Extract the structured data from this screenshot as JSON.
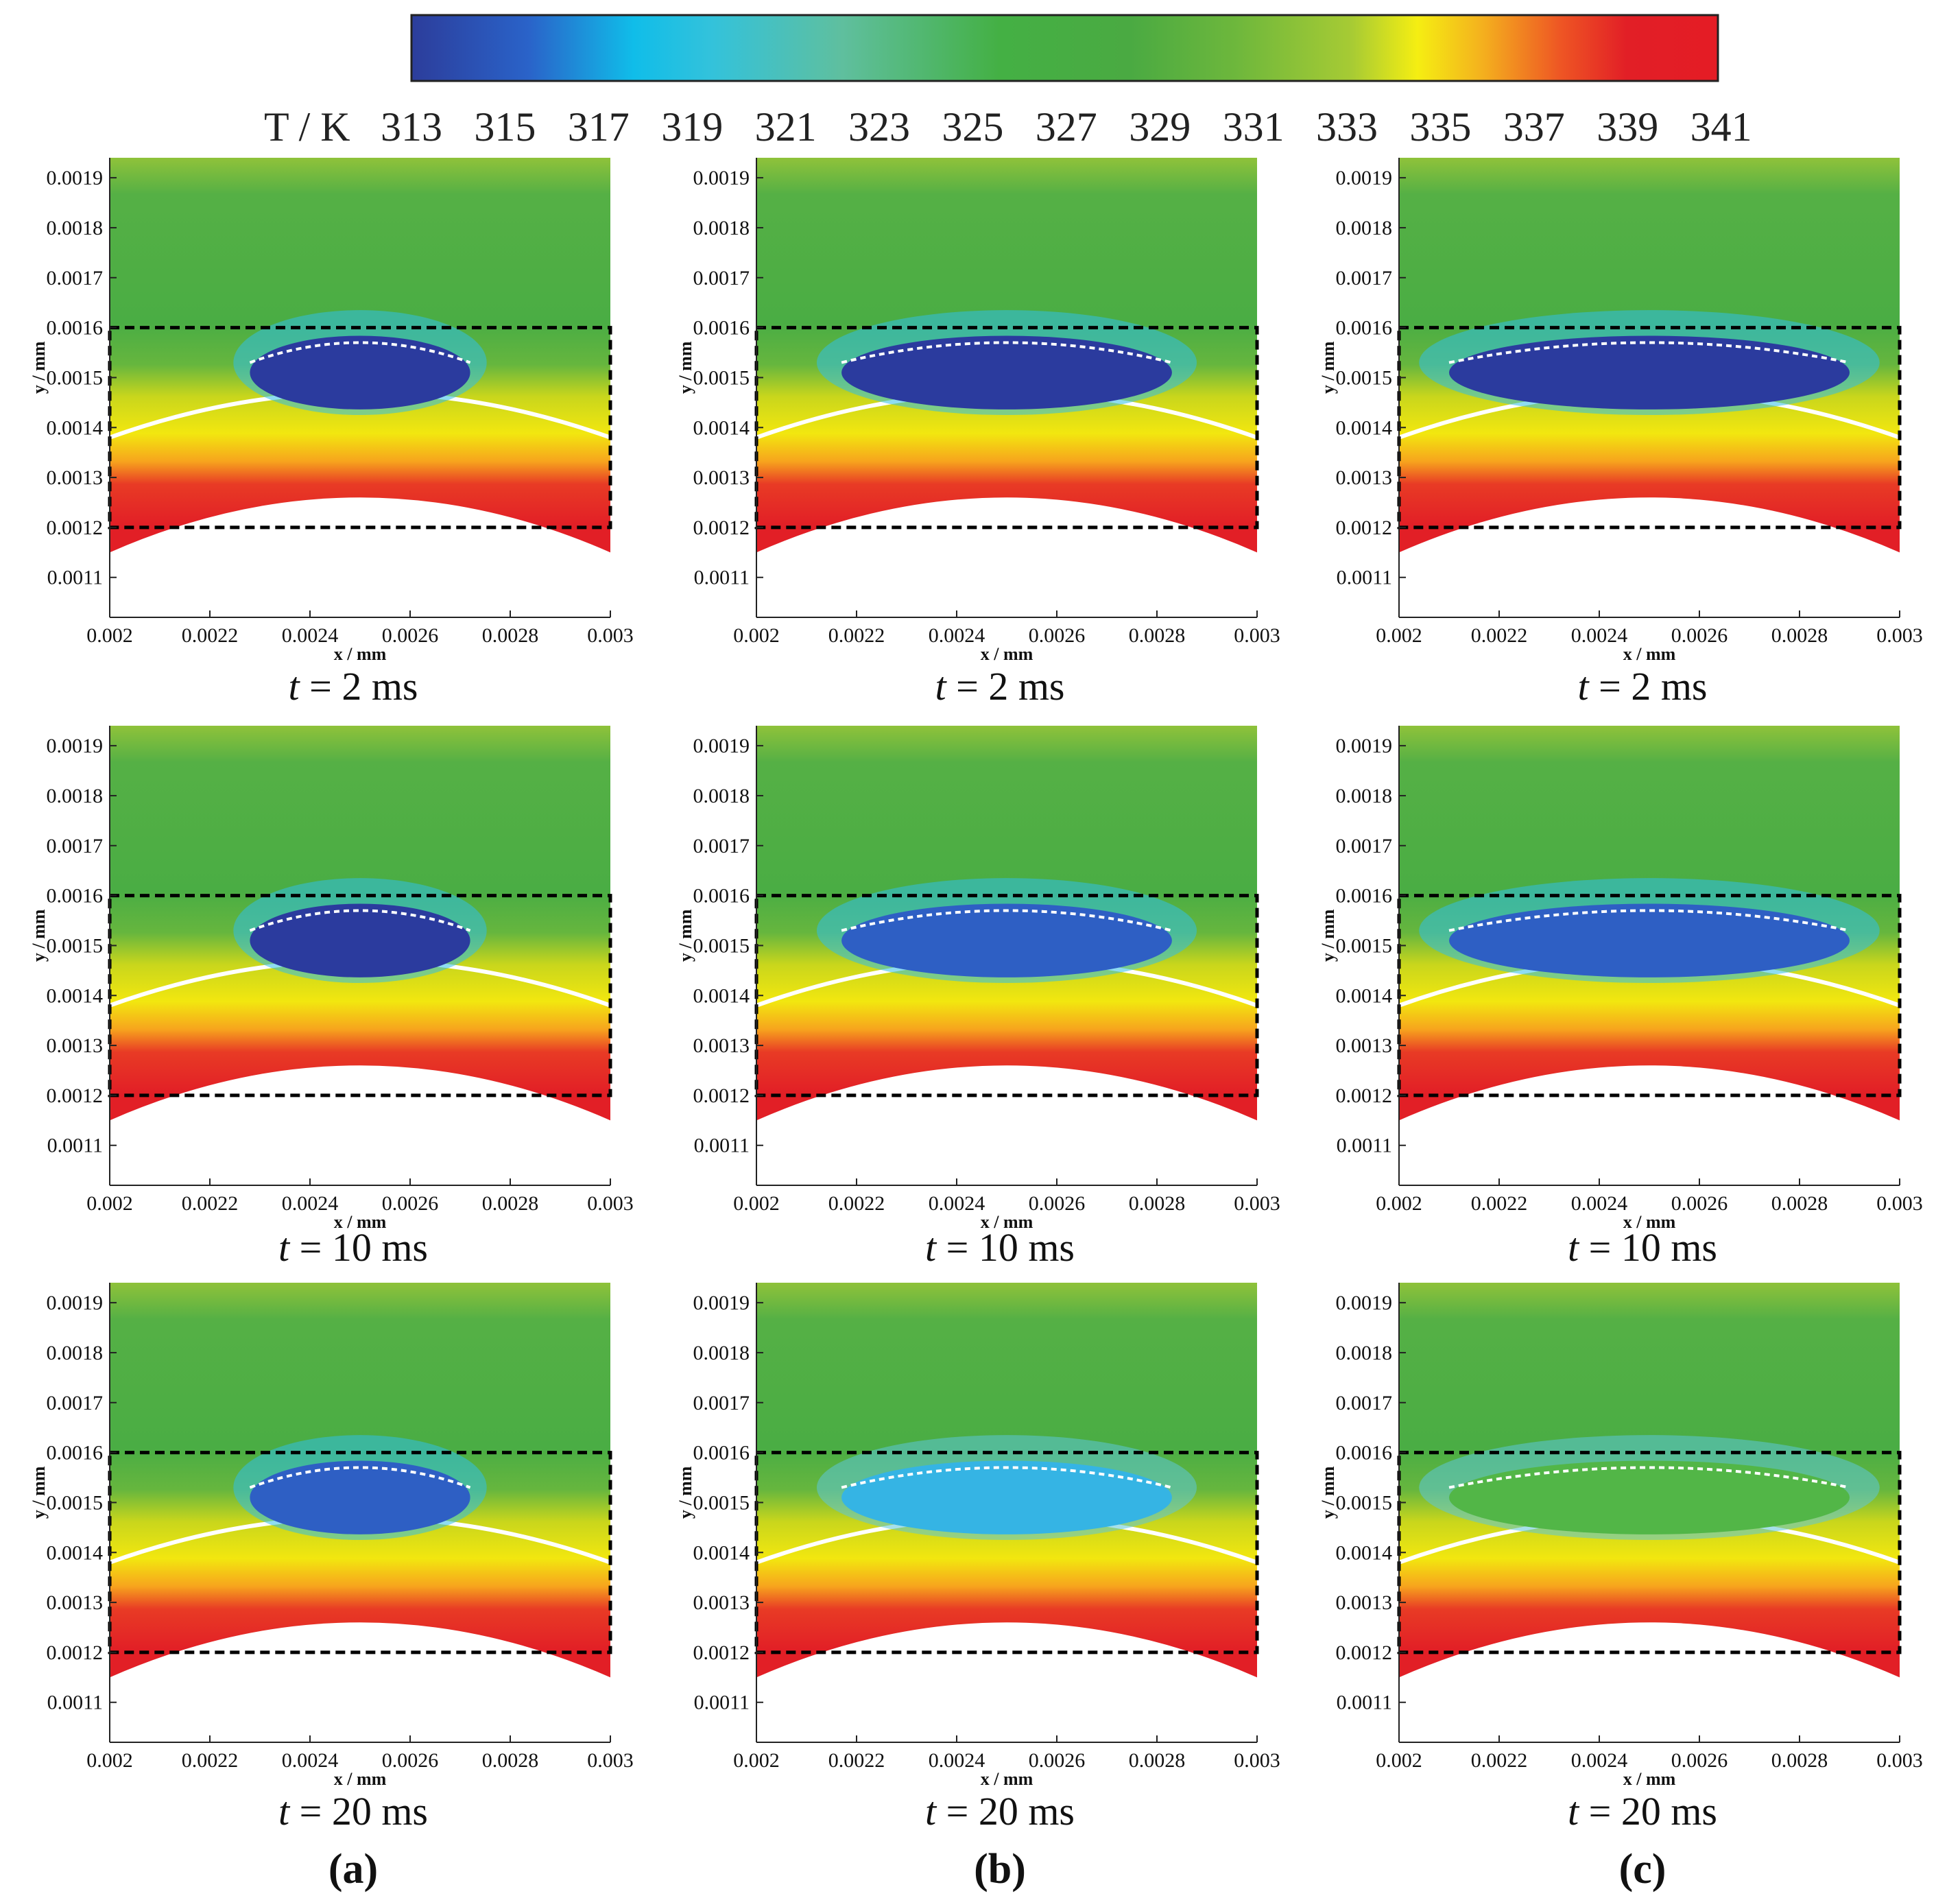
{
  "chart_data": {
    "type": "contour",
    "title": "",
    "colorbar": {
      "label": "T / K",
      "ticks": [
        "313",
        "315",
        "317",
        "319",
        "321",
        "323",
        "325",
        "327",
        "329",
        "331",
        "333",
        "335",
        "337",
        "339",
        "341"
      ],
      "range": [
        313,
        341
      ],
      "colors": [
        "#2c3d9b",
        "#2a63c9",
        "#10bde9",
        "#33c2db",
        "#5fbf9e",
        "#44b044",
        "#4aaa42",
        "#6db73c",
        "#a7cb34",
        "#f5ee12",
        "#f4b01e",
        "#ee5524",
        "#e21f26",
        "#e41c25"
      ]
    },
    "xlabel": "x / mm",
    "ylabel": "y / mm",
    "xlim": [
      0.002,
      0.003
    ],
    "ylim": [
      0.00102,
      0.00194
    ],
    "x_ticks": [
      "0.002",
      "0.0022",
      "0.0024",
      "0.0026",
      "0.0028",
      "0.003"
    ],
    "y_ticks": [
      "0.0019",
      "0.0018",
      "0.0017",
      "0.0016",
      "0.0015",
      "0.0014",
      "0.0013",
      "0.0012",
      "0.0011"
    ],
    "region_box_y": [
      0.0012,
      0.0016
    ],
    "columns": [
      {
        "label": "(a)",
        "panels": [
          {
            "time": "2 ms",
            "halfwidth": 0.00022,
            "cold_level": 1.0
          },
          {
            "time": "10 ms",
            "halfwidth": 0.00022,
            "cold_level": 0.9
          },
          {
            "time": "20 ms",
            "halfwidth": 0.00022,
            "cold_level": 0.7
          }
        ]
      },
      {
        "label": "(b)",
        "panels": [
          {
            "time": "2 ms",
            "halfwidth": 0.00033,
            "cold_level": 1.0
          },
          {
            "time": "10 ms",
            "halfwidth": 0.00033,
            "cold_level": 0.75
          },
          {
            "time": "20 ms",
            "halfwidth": 0.00033,
            "cold_level": 0.35
          }
        ]
      },
      {
        "label": "(c)",
        "panels": [
          {
            "time": "2 ms",
            "halfwidth": 0.0004,
            "cold_level": 0.9
          },
          {
            "time": "10 ms",
            "halfwidth": 0.0004,
            "cold_level": 0.5
          },
          {
            "time": "20 ms",
            "halfwidth": 0.0004,
            "cold_level": 0.1
          }
        ]
      }
    ]
  },
  "time_prefix": "t",
  "time_equals": " = "
}
